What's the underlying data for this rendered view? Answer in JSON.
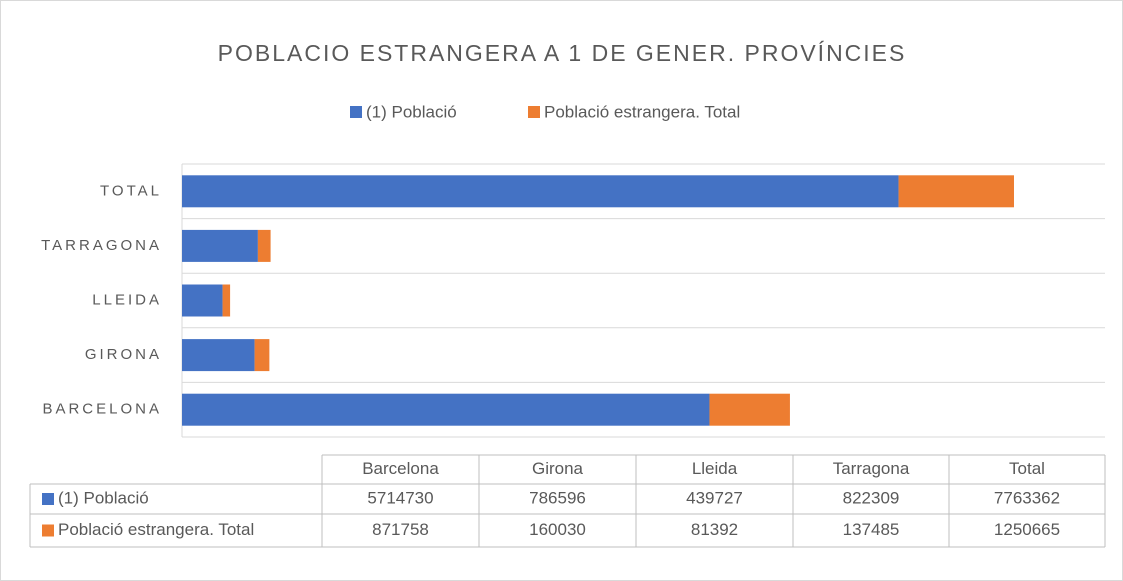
{
  "chart_data": {
    "type": "stacked-barh",
    "title": "POBLACIO ESTRANGERA A 1 DE GENER. PROVÍNCIES",
    "categories": [
      "Barcelona",
      "Girona",
      "Lleida",
      "Tarragona",
      "Total"
    ],
    "series": [
      {
        "name": "(1) Població",
        "color": "#4472c4",
        "values": [
          5714730,
          786596,
          439727,
          822309,
          7763362
        ]
      },
      {
        "name": "Població estrangera. Total",
        "color": "#ed7d31",
        "values": [
          871758,
          160030,
          81392,
          137485,
          1250665
        ]
      }
    ],
    "xlim": [
      0,
      10000000
    ],
    "grid": true
  }
}
